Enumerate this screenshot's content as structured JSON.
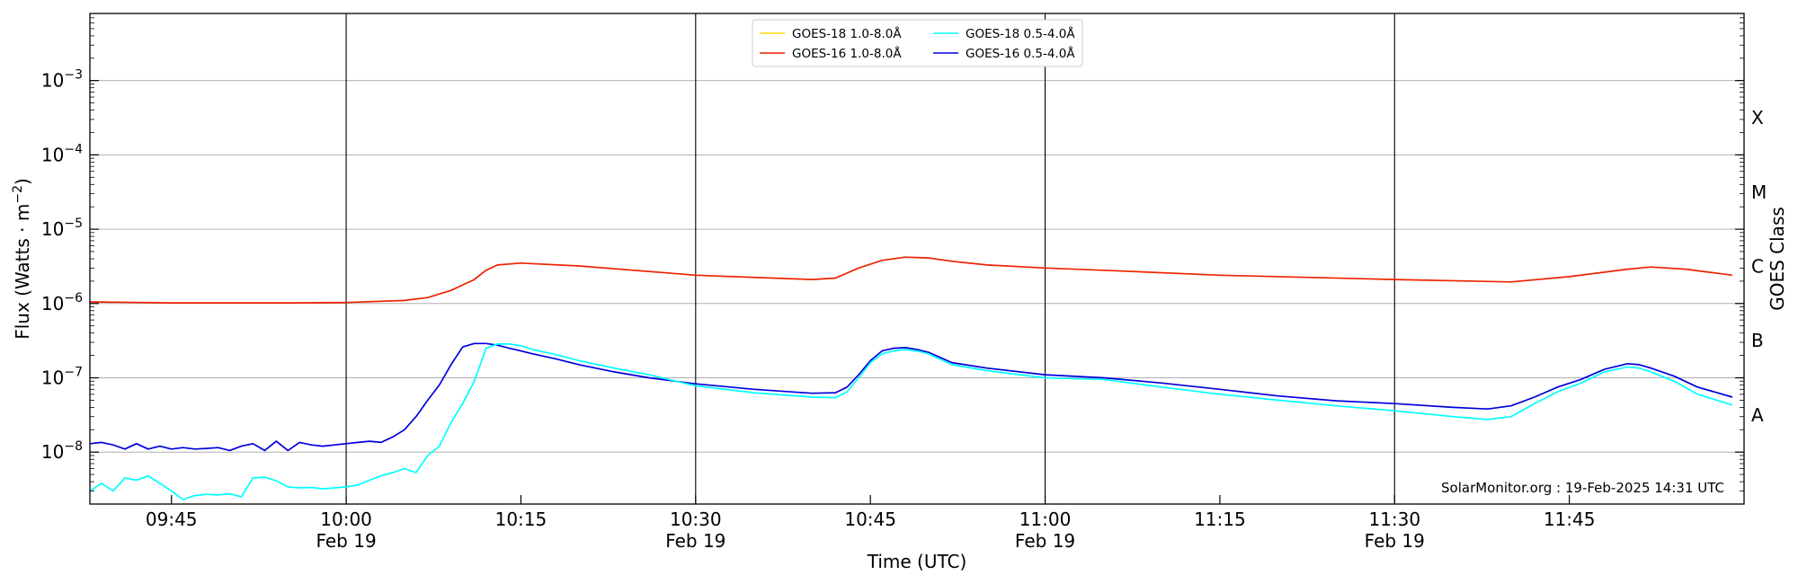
{
  "chart_data": {
    "type": "line",
    "title": "",
    "xlabel": "Time (UTC)",
    "ylabel_main": "Flux (Watts · m",
    "ylabel_sup": "−2",
    "ylabel_close": ")",
    "ylabel_right": "GOES Class",
    "scale_y": "log",
    "ylim": [
      2e-09,
      0.008
    ],
    "xlim": [
      "09:38",
      "12:00"
    ],
    "grid": true,
    "legend_position": "top-center",
    "watermark": "SolarMonitor.org : 19-Feb-2025 14:31 UTC",
    "x_ticks": [
      {
        "t": "09:45",
        "label": "09:45",
        "sub": ""
      },
      {
        "t": "10:00",
        "label": "10:00",
        "sub": "Feb 19"
      },
      {
        "t": "10:15",
        "label": "10:15",
        "sub": ""
      },
      {
        "t": "10:30",
        "label": "10:30",
        "sub": "Feb 19"
      },
      {
        "t": "10:45",
        "label": "10:45",
        "sub": ""
      },
      {
        "t": "11:00",
        "label": "11:00",
        "sub": "Feb 19"
      },
      {
        "t": "11:15",
        "label": "11:15",
        "sub": ""
      },
      {
        "t": "11:30",
        "label": "11:30",
        "sub": "Feb 19"
      },
      {
        "t": "11:45",
        "label": "11:45",
        "sub": ""
      }
    ],
    "vertical_lines": [
      "10:00",
      "10:30",
      "11:00",
      "11:30"
    ],
    "y_ticks": [
      {
        "v": 1e-08,
        "mant": "10",
        "exp": "−8"
      },
      {
        "v": 1e-07,
        "mant": "10",
        "exp": "−7"
      },
      {
        "v": 1e-06,
        "mant": "10",
        "exp": "−6"
      },
      {
        "v": 1e-05,
        "mant": "10",
        "exp": "−5"
      },
      {
        "v": 0.0001,
        "mant": "10",
        "exp": "−4"
      },
      {
        "v": 0.001,
        "mant": "10",
        "exp": "−3"
      }
    ],
    "goes_classes": [
      {
        "label": "A",
        "v": 3.16e-08
      },
      {
        "label": "B",
        "v": 3.16e-07
      },
      {
        "label": "C",
        "v": 3.16e-06
      },
      {
        "label": "M",
        "v": 3.16e-05
      },
      {
        "label": "X",
        "v": 0.000316
      }
    ],
    "legend": [
      {
        "name": "GOES-18 1.0-8.0Å",
        "color": "#ffd700"
      },
      {
        "name": "GOES-18 0.5-4.0Å",
        "color": "#00ffff"
      },
      {
        "name": "GOES-16 1.0-8.0Å",
        "color": "#ee2200"
      },
      {
        "name": "GOES-16 0.5-4.0Å",
        "color": "#0000dd"
      }
    ],
    "series": [
      {
        "name": "GOES-16 1.0-8.0Å",
        "color": "#ee2200",
        "x": [
          "09:38",
          "09:45",
          "09:55",
          "10:00",
          "10:05",
          "10:07",
          "10:09",
          "10:11",
          "10:12",
          "10:13",
          "10:15",
          "10:20",
          "10:30",
          "10:40",
          "10:42",
          "10:44",
          "10:46",
          "10:48",
          "10:50",
          "10:52",
          "10:55",
          "11:00",
          "11:05",
          "11:15",
          "11:30",
          "11:40",
          "11:45",
          "11:50",
          "11:52",
          "11:55",
          "11:59"
        ],
        "y": [
          1.05e-06,
          1.02e-06,
          1.02e-06,
          1.03e-06,
          1.1e-06,
          1.2e-06,
          1.5e-06,
          2.1e-06,
          2.8e-06,
          3.3e-06,
          3.5e-06,
          3.2e-06,
          2.4e-06,
          2.1e-06,
          2.2e-06,
          3e-06,
          3.8e-06,
          4.2e-06,
          4.1e-06,
          3.7e-06,
          3.3e-06,
          3e-06,
          2.8e-06,
          2.4e-06,
          2.1e-06,
          1.95e-06,
          2.3e-06,
          2.9e-06,
          3.1e-06,
          2.9e-06,
          2.4e-06
        ]
      },
      {
        "name": "GOES-16 0.5-4.0Å",
        "color": "#0000dd",
        "x": [
          "09:38",
          "09:39",
          "09:40",
          "09:41",
          "09:42",
          "09:43",
          "09:44",
          "09:45",
          "09:46",
          "09:47",
          "09:48",
          "09:49",
          "09:50",
          "09:51",
          "09:52",
          "09:53",
          "09:54",
          "09:55",
          "09:56",
          "09:57",
          "09:58",
          "09:59",
          "10:00",
          "10:01",
          "10:02",
          "10:03",
          "10:04",
          "10:05",
          "10:06",
          "10:07",
          "10:08",
          "10:09",
          "10:10",
          "10:11",
          "10:12",
          "10:13",
          "10:14",
          "10:15",
          "10:16",
          "10:18",
          "10:20",
          "10:23",
          "10:26",
          "10:30",
          "10:35",
          "10:40",
          "10:42",
          "10:43",
          "10:44",
          "10:45",
          "10:46",
          "10:47",
          "10:48",
          "10:49",
          "10:50",
          "10:52",
          "10:55",
          "11:00",
          "11:05",
          "11:10",
          "11:15",
          "11:20",
          "11:25",
          "11:30",
          "11:35",
          "11:38",
          "11:40",
          "11:42",
          "11:44",
          "11:46",
          "11:48",
          "11:50",
          "11:51",
          "11:52",
          "11:54",
          "11:56",
          "11:59"
        ],
        "y": [
          1.3e-08,
          1.35e-08,
          1.25e-08,
          1.1e-08,
          1.3e-08,
          1.1e-08,
          1.2e-08,
          1.1e-08,
          1.15e-08,
          1.1e-08,
          1.12e-08,
          1.15e-08,
          1.05e-08,
          1.2e-08,
          1.3e-08,
          1.05e-08,
          1.4e-08,
          1.05e-08,
          1.35e-08,
          1.25e-08,
          1.2e-08,
          1.25e-08,
          1.3e-08,
          1.35e-08,
          1.4e-08,
          1.35e-08,
          1.6e-08,
          2e-08,
          3e-08,
          5e-08,
          8e-08,
          1.5e-07,
          2.6e-07,
          2.9e-07,
          2.9e-07,
          2.75e-07,
          2.5e-07,
          2.3e-07,
          2.1e-07,
          1.8e-07,
          1.5e-07,
          1.2e-07,
          1e-07,
          8.3e-08,
          7e-08,
          6.2e-08,
          6.3e-08,
          7.5e-08,
          1.1e-07,
          1.7e-07,
          2.3e-07,
          2.5e-07,
          2.55e-07,
          2.4e-07,
          2.2e-07,
          1.6e-07,
          1.35e-07,
          1.1e-07,
          1e-07,
          8.5e-08,
          7e-08,
          5.7e-08,
          4.9e-08,
          4.5e-08,
          4e-08,
          3.8e-08,
          4.2e-08,
          5.5e-08,
          7.5e-08,
          9.5e-08,
          1.3e-07,
          1.55e-07,
          1.5e-07,
          1.35e-07,
          1.05e-07,
          7.5e-08,
          5.5e-08
        ]
      },
      {
        "name": "GOES-18 0.5-4.0Å",
        "color": "#00ffff",
        "x": [
          "09:38",
          "09:39",
          "09:40",
          "09:41",
          "09:42",
          "09:43",
          "09:44",
          "09:45",
          "09:46",
          "09:47",
          "09:48",
          "09:49",
          "09:50",
          "09:51",
          "09:52",
          "09:53",
          "09:54",
          "09:55",
          "09:56",
          "09:57",
          "09:58",
          "09:59",
          "10:00",
          "10:01",
          "10:02",
          "10:03",
          "10:04",
          "10:05",
          "10:06",
          "10:07",
          "10:08",
          "10:09",
          "10:10",
          "10:11",
          "10:12",
          "10:13",
          "10:14",
          "10:15",
          "10:16",
          "10:18",
          "10:20",
          "10:23",
          "10:26",
          "10:30",
          "10:35",
          "10:40",
          "10:42",
          "10:43",
          "10:44",
          "10:45",
          "10:46",
          "10:47",
          "10:48",
          "10:49",
          "10:50",
          "10:52",
          "10:55",
          "11:00",
          "11:05",
          "11:10",
          "11:15",
          "11:20",
          "11:25",
          "11:30",
          "11:35",
          "11:38",
          "11:40",
          "11:42",
          "11:44",
          "11:46",
          "11:48",
          "11:50",
          "11:51",
          "11:52",
          "11:54",
          "11:56",
          "11:59"
        ],
        "y": [
          3e-09,
          3.8e-09,
          3e-09,
          4.5e-09,
          4.2e-09,
          4.8e-09,
          3.8e-09,
          3e-09,
          2.3e-09,
          2.6e-09,
          2.7e-09,
          2.65e-09,
          2.75e-09,
          2.5e-09,
          4.5e-09,
          4.6e-09,
          4.1e-09,
          3.4e-09,
          3.3e-09,
          3.35e-09,
          3.2e-09,
          3.3e-09,
          3.4e-09,
          3.6e-09,
          4.2e-09,
          4.8e-09,
          5.3e-09,
          6e-09,
          5.3e-09,
          9e-09,
          1.2e-08,
          2.5e-08,
          4.5e-08,
          9e-08,
          2.5e-07,
          2.85e-07,
          2.85e-07,
          2.7e-07,
          2.4e-07,
          2.05e-07,
          1.7e-07,
          1.35e-07,
          1.1e-07,
          7.8e-08,
          6.3e-08,
          5.5e-08,
          5.4e-08,
          6.5e-08,
          1e-07,
          1.6e-07,
          2.1e-07,
          2.3e-07,
          2.4e-07,
          2.3e-07,
          2.1e-07,
          1.5e-07,
          1.25e-07,
          1e-07,
          9.5e-08,
          7.5e-08,
          6e-08,
          5e-08,
          4.2e-08,
          3.6e-08,
          3e-08,
          2.75e-08,
          3e-08,
          4.5e-08,
          6.5e-08,
          8.5e-08,
          1.2e-07,
          1.4e-07,
          1.35e-07,
          1.2e-07,
          9e-08,
          6e-08,
          4.3e-08
        ]
      }
    ]
  }
}
